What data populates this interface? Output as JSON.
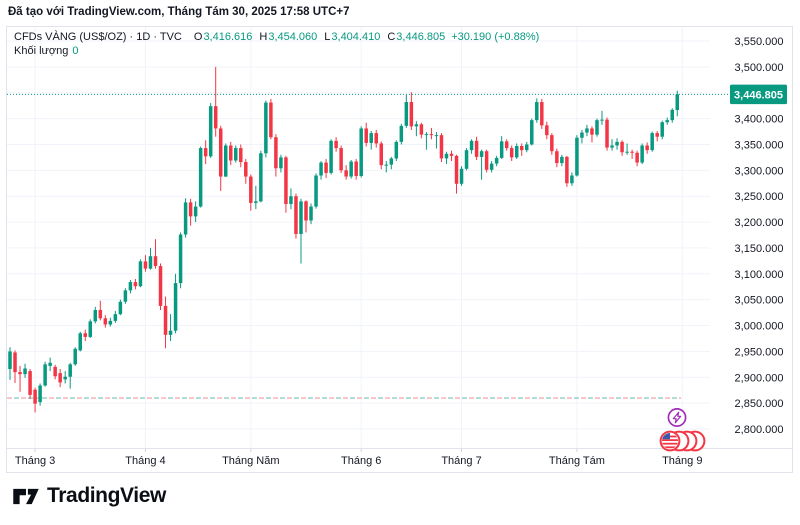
{
  "attribution": "Đã tạo với TradingView.com, Tháng Tám 30, 2025 17:58 UTC+7",
  "legend": {
    "title": "CFDs VÀNG (US$/OZ) · 1D · TVC",
    "o_label": "O",
    "o_value": "3,416.616",
    "h_label": "H",
    "h_value": "3,454.060",
    "l_label": "L",
    "l_value": "3,404.410",
    "c_label": "C",
    "c_value": "3,446.805",
    "change": "+30.190 (+0.88%)",
    "volume_label": "Khối lượng",
    "volume_value": "0"
  },
  "footer": {
    "logo_text": "TradingView"
  },
  "colors": {
    "up": "#089981",
    "down": "#F23645",
    "grid": "#F0F3FA",
    "border": "#E0E3EB",
    "axis_text": "#131722",
    "price_box_bg": "#089981",
    "price_box_text": "#FFFFFF",
    "baseline_red": "#F28B91",
    "baseline_teal": "#63BBAF",
    "icon_purple": "#A02CB8",
    "icon_red": "#F23645",
    "icon_blue": "#3A5BA9"
  },
  "chart_data": {
    "type": "candlestick",
    "title": "CFDs VÀNG (US$/OZ) · 1D · TVC",
    "interval": "1D",
    "current_price": 3446.805,
    "current_price_label": "3,446.805",
    "baseline_price": 2860,
    "grid": true,
    "y_axis": {
      "min": 2800,
      "max": 3550,
      "step": 50,
      "ticks": [
        3550,
        3500,
        3400,
        3350,
        3300,
        3250,
        3200,
        3150,
        3100,
        3050,
        3000,
        2950,
        2900,
        2850,
        2800
      ],
      "tick_labels": [
        "3,550.000",
        "3,500.000",
        "3,400.000",
        "3,350.000",
        "3,300.000",
        "3,250.000",
        "3,200.000",
        "3,150.000",
        "3,100.000",
        "3,050.000",
        "3,000.000",
        "2,950.000",
        "2,900.000",
        "2,850.000",
        "2,800.000"
      ]
    },
    "months": [
      {
        "label": "Tháng 3",
        "index": 5
      },
      {
        "label": "Tháng 4",
        "index": 27
      },
      {
        "label": "Tháng Năm",
        "index": 48
      },
      {
        "label": "Tháng 6",
        "index": 70
      },
      {
        "label": "Tháng 7",
        "index": 90
      },
      {
        "label": "Tháng Tám",
        "index": 113
      },
      {
        "label": "Tháng 9",
        "index": 134
      }
    ],
    "candles": [
      [
        2916,
        2958,
        2895,
        2950
      ],
      [
        2948,
        2952,
        2889,
        2910
      ],
      [
        2910,
        2922,
        2872,
        2906
      ],
      [
        2906,
        2926,
        2899,
        2917
      ],
      [
        2912,
        2916,
        2858,
        2866
      ],
      [
        2876,
        2880,
        2832,
        2849
      ],
      [
        2852,
        2888,
        2845,
        2884
      ],
      [
        2884,
        2930,
        2882,
        2925
      ],
      [
        2922,
        2938,
        2912,
        2928
      ],
      [
        2920,
        2924,
        2896,
        2902
      ],
      [
        2908,
        2916,
        2881,
        2890
      ],
      [
        2896,
        2912,
        2888,
        2901
      ],
      [
        2901,
        2928,
        2878,
        2925
      ],
      [
        2925,
        2958,
        2922,
        2955
      ],
      [
        2952,
        2988,
        2950,
        2985
      ],
      [
        2985,
        2992,
        2970,
        2978
      ],
      [
        2978,
        3012,
        2976,
        3008
      ],
      [
        3008,
        3036,
        3004,
        3030
      ],
      [
        3030,
        3048,
        3010,
        3014
      ],
      [
        3014,
        3020,
        2996,
        3002
      ],
      [
        3002,
        3015,
        2998,
        3009
      ],
      [
        3009,
        3028,
        3005,
        3022
      ],
      [
        3022,
        3050,
        3020,
        3046
      ],
      [
        3046,
        3072,
        3042,
        3068
      ],
      [
        3068,
        3088,
        3062,
        3084
      ],
      [
        3084,
        3090,
        3070,
        3076
      ],
      [
        3076,
        3128,
        3074,
        3124
      ],
      [
        3124,
        3136,
        3104,
        3110
      ],
      [
        3110,
        3150,
        3108,
        3134
      ],
      [
        3134,
        3167,
        3110,
        3115
      ],
      [
        3115,
        3120,
        3030,
        3038
      ],
      [
        3038,
        3056,
        2956,
        2982
      ],
      [
        2982,
        3022,
        2970,
        2990
      ],
      [
        2990,
        3100,
        2985,
        3082
      ],
      [
        3082,
        3180,
        3072,
        3176
      ],
      [
        3176,
        3246,
        3170,
        3238
      ],
      [
        3238,
        3245,
        3193,
        3211
      ],
      [
        3211,
        3240,
        3200,
        3230
      ],
      [
        3230,
        3346,
        3228,
        3343
      ],
      [
        3343,
        3358,
        3312,
        3327
      ],
      [
        3327,
        3430,
        3324,
        3424
      ],
      [
        3424,
        3500,
        3365,
        3381
      ],
      [
        3381,
        3386,
        3260,
        3288
      ],
      [
        3288,
        3352,
        3287,
        3348
      ],
      [
        3348,
        3355,
        3310,
        3319
      ],
      [
        3319,
        3348,
        3315,
        3343
      ],
      [
        3343,
        3350,
        3306,
        3316
      ],
      [
        3316,
        3322,
        3274,
        3288
      ],
      [
        3288,
        3292,
        3222,
        3237
      ],
      [
        3237,
        3270,
        3225,
        3240
      ],
      [
        3240,
        3338,
        3238,
        3333
      ],
      [
        3333,
        3435,
        3325,
        3431
      ],
      [
        3431,
        3438,
        3360,
        3364
      ],
      [
        3364,
        3370,
        3288,
        3304
      ],
      [
        3304,
        3330,
        3296,
        3325
      ],
      [
        3325,
        3328,
        3218,
        3235
      ],
      [
        3235,
        3265,
        3225,
        3250
      ],
      [
        3250,
        3255,
        3168,
        3177
      ],
      [
        3177,
        3245,
        3120,
        3240
      ],
      [
        3240,
        3242,
        3180,
        3203
      ],
      [
        3203,
        3236,
        3196,
        3230
      ],
      [
        3230,
        3294,
        3226,
        3290
      ],
      [
        3290,
        3318,
        3282,
        3315
      ],
      [
        3315,
        3322,
        3285,
        3295
      ],
      [
        3295,
        3360,
        3292,
        3357
      ],
      [
        3357,
        3364,
        3336,
        3343
      ],
      [
        3343,
        3348,
        3295,
        3300
      ],
      [
        3300,
        3310,
        3282,
        3288
      ],
      [
        3288,
        3320,
        3284,
        3317
      ],
      [
        3317,
        3322,
        3282,
        3289
      ],
      [
        3289,
        3385,
        3286,
        3381
      ],
      [
        3381,
        3392,
        3346,
        3353
      ],
      [
        3353,
        3376,
        3340,
        3372
      ],
      [
        3372,
        3378,
        3344,
        3352
      ],
      [
        3352,
        3356,
        3302,
        3310
      ],
      [
        3310,
        3318,
        3296,
        3311
      ],
      [
        3311,
        3326,
        3302,
        3323
      ],
      [
        3323,
        3358,
        3318,
        3355
      ],
      [
        3355,
        3390,
        3350,
        3386
      ],
      [
        3386,
        3446,
        3382,
        3432
      ],
      [
        3432,
        3451,
        3378,
        3385
      ],
      [
        3385,
        3395,
        3366,
        3389
      ],
      [
        3389,
        3392,
        3362,
        3369
      ],
      [
        3369,
        3374,
        3340,
        3370
      ],
      [
        3370,
        3382,
        3360,
        3368
      ],
      [
        3368,
        3374,
        3342,
        3368
      ],
      [
        3368,
        3372,
        3316,
        3323
      ],
      [
        3323,
        3336,
        3312,
        3332
      ],
      [
        3332,
        3338,
        3318,
        3328
      ],
      [
        3328,
        3330,
        3255,
        3274
      ],
      [
        3274,
        3308,
        3270,
        3303
      ],
      [
        3303,
        3343,
        3300,
        3339
      ],
      [
        3339,
        3360,
        3332,
        3357
      ],
      [
        3357,
        3365,
        3320,
        3326
      ],
      [
        3326,
        3340,
        3282,
        3337
      ],
      [
        3337,
        3340,
        3296,
        3301
      ],
      [
        3301,
        3318,
        3296,
        3313
      ],
      [
        3313,
        3328,
        3308,
        3324
      ],
      [
        3324,
        3366,
        3322,
        3356
      ],
      [
        3356,
        3360,
        3338,
        3343
      ],
      [
        3343,
        3348,
        3318,
        3325
      ],
      [
        3325,
        3352,
        3322,
        3347
      ],
      [
        3347,
        3352,
        3328,
        3339
      ],
      [
        3339,
        3355,
        3335,
        3350
      ],
      [
        3350,
        3400,
        3348,
        3397
      ],
      [
        3397,
        3439,
        3392,
        3432
      ],
      [
        3432,
        3438,
        3380,
        3387
      ],
      [
        3387,
        3394,
        3360,
        3368
      ],
      [
        3368,
        3372,
        3330,
        3337
      ],
      [
        3337,
        3342,
        3306,
        3314
      ],
      [
        3314,
        3330,
        3308,
        3326
      ],
      [
        3326,
        3328,
        3268,
        3275
      ],
      [
        3275,
        3296,
        3270,
        3290
      ],
      [
        3290,
        3368,
        3288,
        3363
      ],
      [
        3363,
        3378,
        3352,
        3373
      ],
      [
        3373,
        3388,
        3366,
        3381
      ],
      [
        3381,
        3385,
        3354,
        3369
      ],
      [
        3369,
        3400,
        3365,
        3397
      ],
      [
        3397,
        3415,
        3388,
        3398
      ],
      [
        3398,
        3402,
        3338,
        3344
      ],
      [
        3344,
        3360,
        3338,
        3348
      ],
      [
        3348,
        3362,
        3340,
        3355
      ],
      [
        3355,
        3358,
        3328,
        3335
      ],
      [
        3335,
        3352,
        3330,
        3336
      ],
      [
        3336,
        3340,
        3322,
        3334
      ],
      [
        3334,
        3338,
        3308,
        3315
      ],
      [
        3315,
        3352,
        3312,
        3348
      ],
      [
        3348,
        3354,
        3332,
        3339
      ],
      [
        3339,
        3375,
        3336,
        3372
      ],
      [
        3372,
        3376,
        3356,
        3365
      ],
      [
        3365,
        3396,
        3360,
        3393
      ],
      [
        3393,
        3402,
        3388,
        3397
      ],
      [
        3397,
        3420,
        3392,
        3417
      ],
      [
        3416.616,
        3454.06,
        3404.41,
        3446.805
      ]
    ]
  }
}
